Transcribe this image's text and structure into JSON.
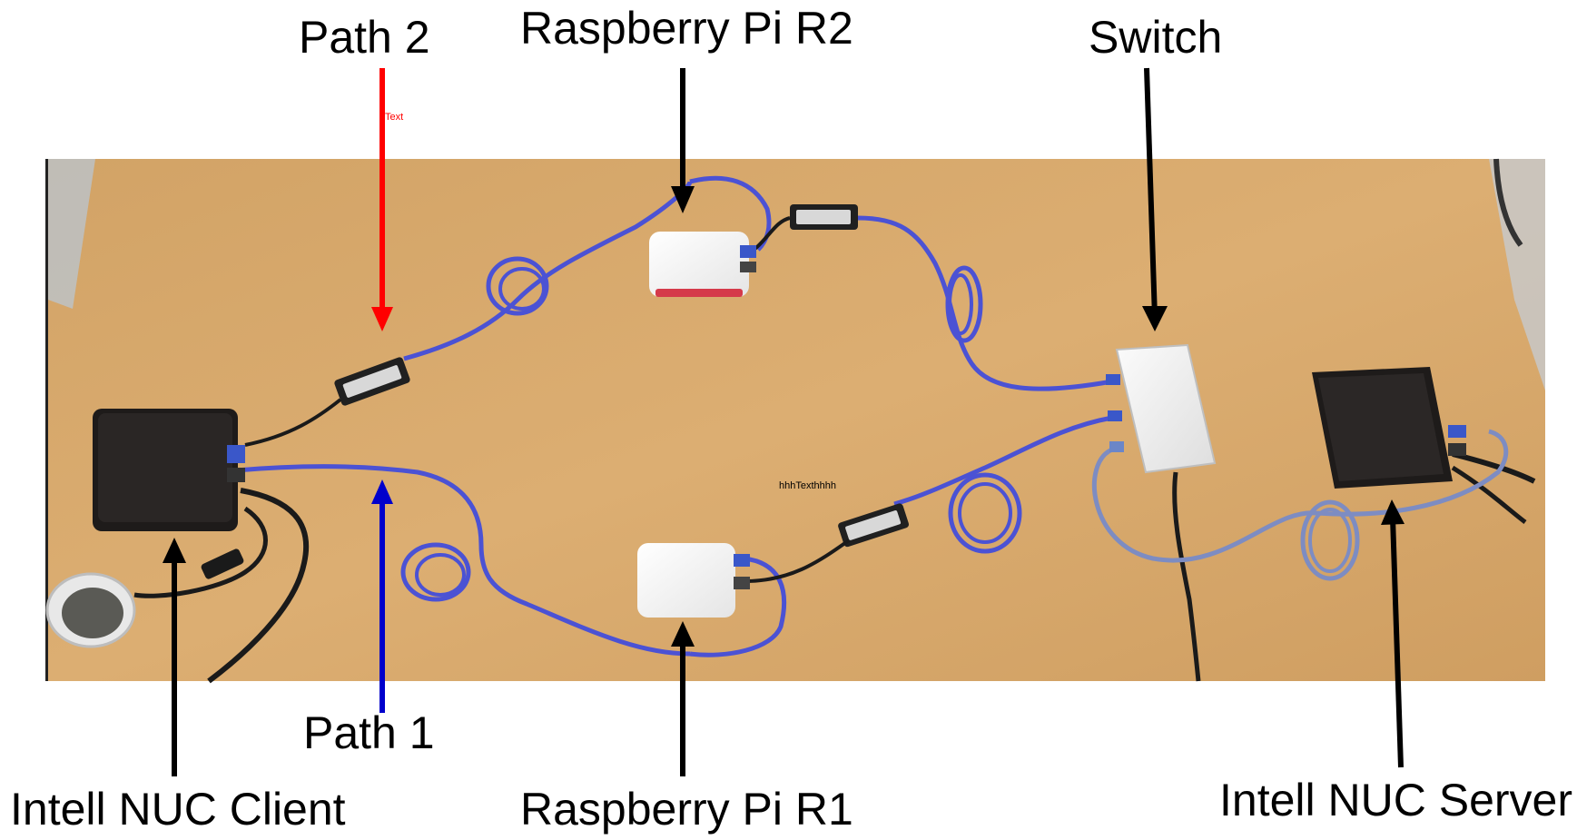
{
  "labels": {
    "path2": "Path 2",
    "path1": "Path 1",
    "pi_r2": "Raspberry Pi R2",
    "pi_r1": "Raspberry Pi R1",
    "switch": "Switch",
    "nuc_client": "Intell NUC Client",
    "nuc_server": "Intell NUC Server",
    "red_note": "Text",
    "center_note_a": "hhh",
    "center_note_b": "Text",
    "center_note_c": "hhhh"
  },
  "colors": {
    "path2": "#ff0000",
    "path1": "#0000cc",
    "pointer": "#000000",
    "table": "#d9ab6e",
    "cable": "#4b52d4",
    "device_dark": "#1e1b1a",
    "device_light": "#f2f2f2"
  }
}
